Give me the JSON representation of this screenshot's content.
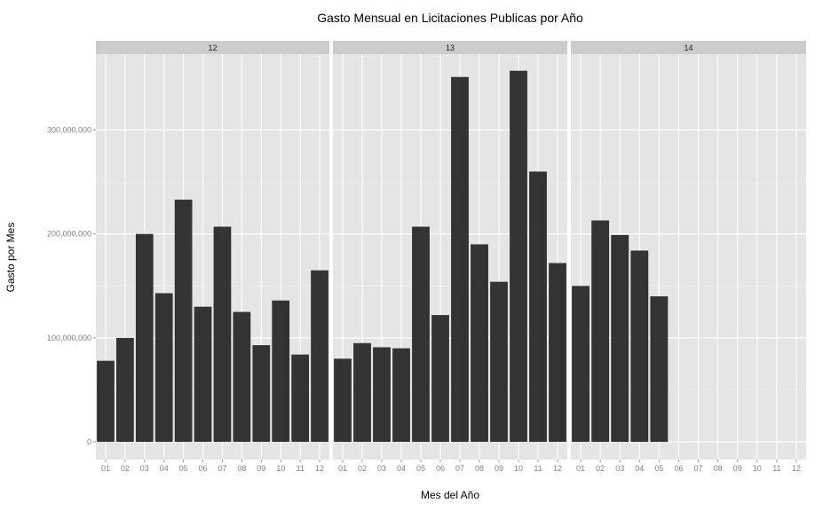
{
  "chart_data": {
    "type": "bar",
    "title": "Gasto Mensual en Licitaciones Publicas por Año",
    "xlabel": "Mes del Año",
    "ylabel": "Gasto por Mes",
    "ylim": [
      -17000000,
      373000000
    ],
    "yticks": [
      0,
      100000000,
      200000000,
      300000000
    ],
    "ytick_labels": [
      "0",
      "100,000,000",
      "200,000,000",
      "300,000,000"
    ],
    "categories": [
      "01",
      "02",
      "03",
      "04",
      "05",
      "06",
      "07",
      "08",
      "09",
      "10",
      "11",
      "12"
    ],
    "grid": true,
    "colors": {
      "panel_bg": "#e5e5e5",
      "strip_bg": "#cccccc",
      "bar": "#333333",
      "grid_major": "#ffffff",
      "grid_minor": "#f2f2f2"
    },
    "facets": [
      {
        "label": "12",
        "values": [
          78000000,
          100000000,
          200000000,
          143000000,
          233000000,
          130000000,
          207000000,
          125000000,
          93000000,
          136000000,
          84000000,
          165000000
        ]
      },
      {
        "label": "13",
        "values": [
          80000000,
          95000000,
          91000000,
          90000000,
          207000000,
          122000000,
          351000000,
          190000000,
          154000000,
          357000000,
          260000000,
          172000000
        ]
      },
      {
        "label": "14",
        "values": [
          150000000,
          213000000,
          199000000,
          184000000,
          140000000,
          null,
          null,
          null,
          null,
          null,
          null,
          null
        ]
      }
    ]
  }
}
